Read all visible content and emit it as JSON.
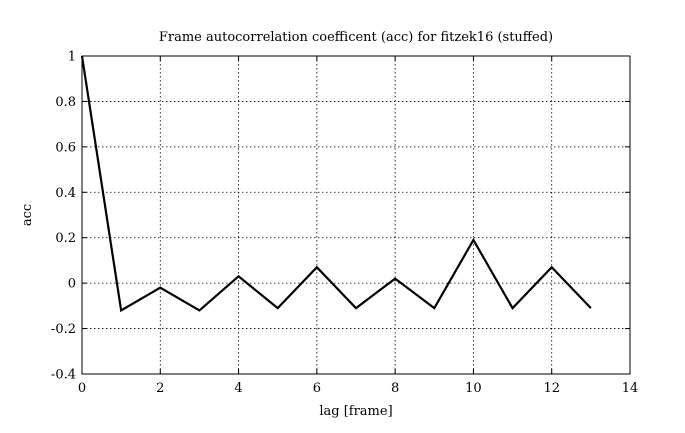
{
  "chart_data": {
    "type": "line",
    "title": "Frame autocorrelation coefficent (acc) for fitzek16 (stuffed)",
    "xlabel": "lag [frame]",
    "ylabel": "acc",
    "xlim": [
      0,
      14
    ],
    "ylim": [
      -0.4,
      1
    ],
    "xticks": [
      0,
      2,
      4,
      6,
      8,
      10,
      12,
      14
    ],
    "xtick_labels": [
      "0",
      "2",
      "4",
      "6",
      "8",
      "10",
      "12",
      "14"
    ],
    "yticks": [
      -0.4,
      -0.2,
      0,
      0.2,
      0.4,
      0.6,
      0.8,
      1
    ],
    "ytick_labels": [
      "-0.4",
      "-0.2",
      "0",
      "0.2",
      "0.4",
      "0.6",
      "0.8",
      "1"
    ],
    "grid": true,
    "x": [
      0,
      1,
      2,
      3,
      4,
      5,
      6,
      7,
      8,
      9,
      10,
      11,
      12,
      13
    ],
    "series": [
      {
        "values": [
          1.0,
          -0.12,
          -0.02,
          -0.12,
          0.03,
          -0.11,
          0.07,
          -0.11,
          0.02,
          -0.11,
          0.19,
          -0.11,
          0.07,
          -0.11
        ],
        "color": "#000000"
      }
    ]
  }
}
